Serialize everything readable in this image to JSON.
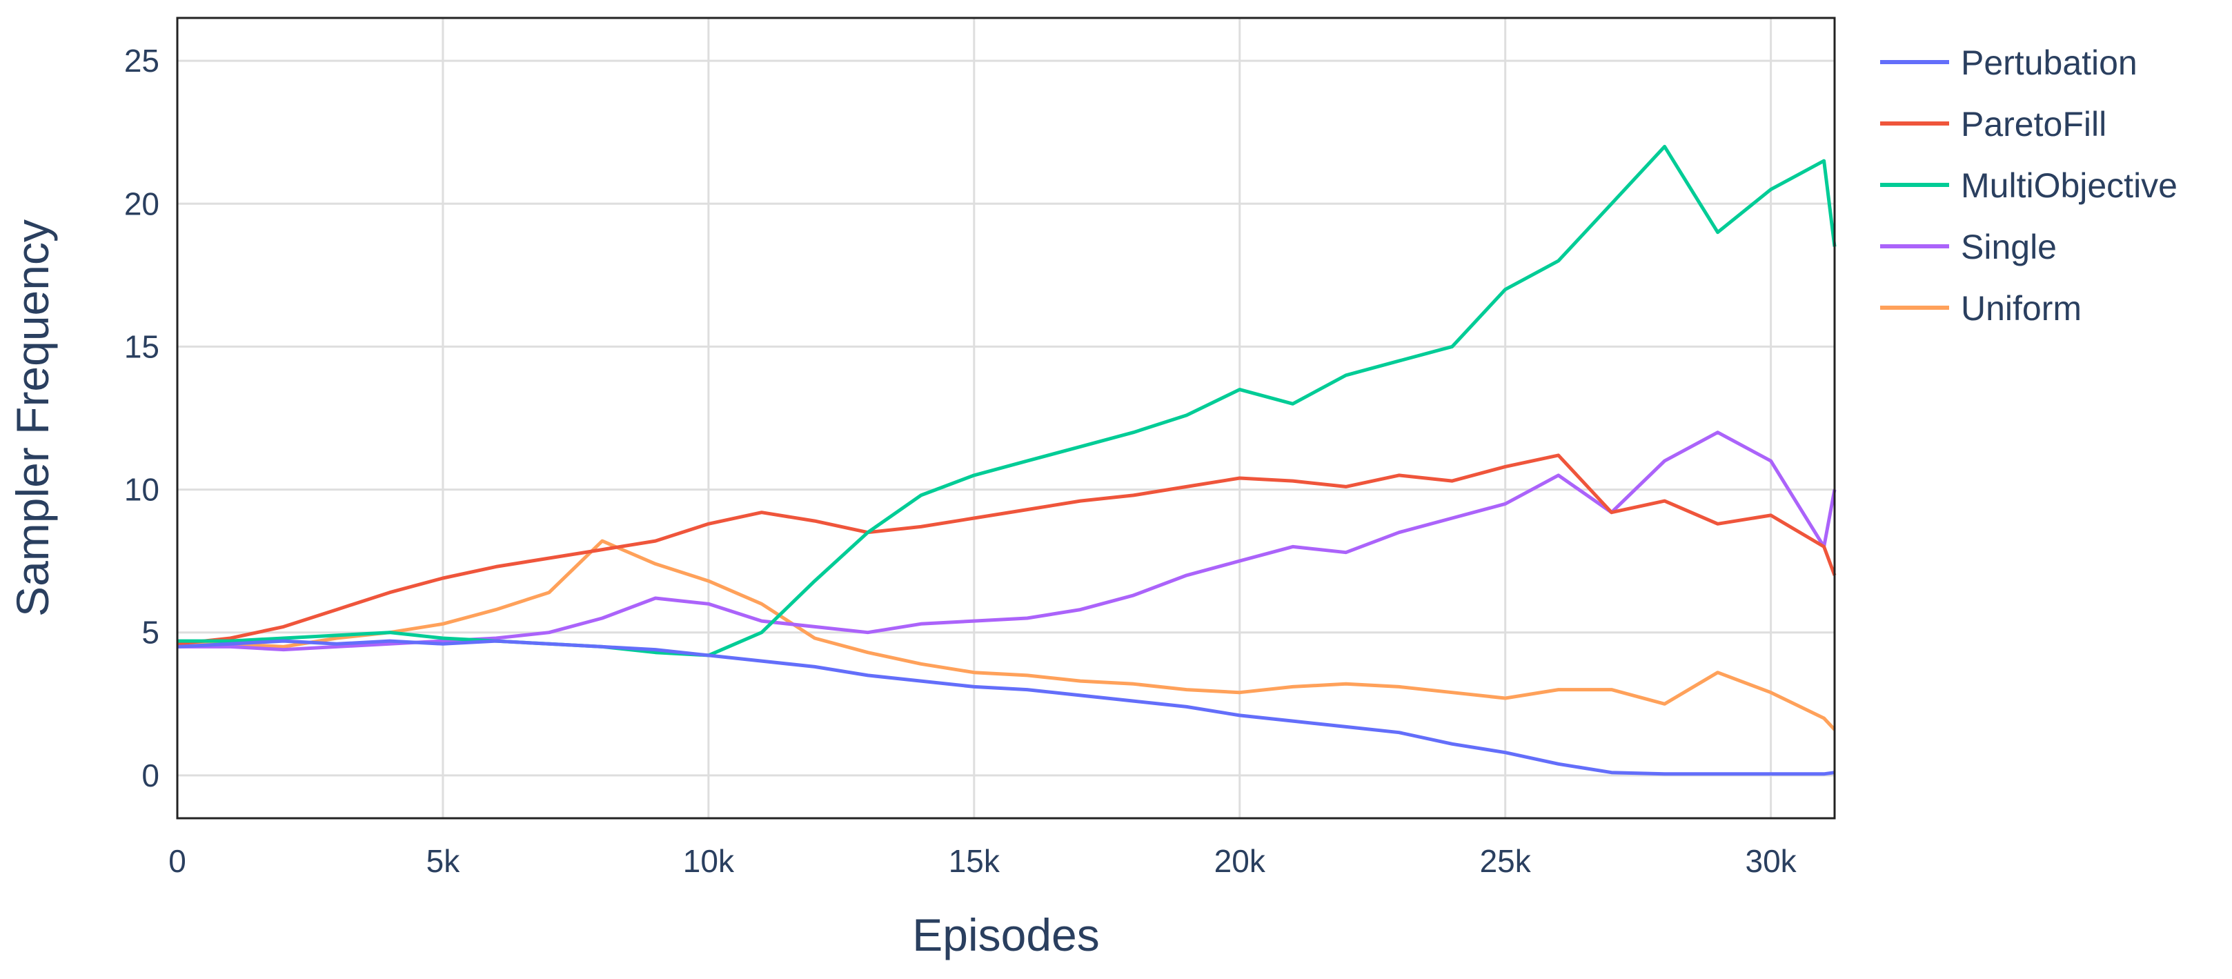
{
  "chart_data": {
    "type": "line",
    "title": "",
    "xlabel": "Episodes",
    "ylabel": "Sampler Frequency",
    "xlim": [
      0,
      31200
    ],
    "ylim": [
      -1.5,
      26.5
    ],
    "grid": true,
    "legend_position": "right",
    "x_ticks": [
      {
        "value": 0,
        "label": "0"
      },
      {
        "value": 5000,
        "label": "5k"
      },
      {
        "value": 10000,
        "label": "10k"
      },
      {
        "value": 15000,
        "label": "15k"
      },
      {
        "value": 20000,
        "label": "20k"
      },
      {
        "value": 25000,
        "label": "25k"
      },
      {
        "value": 30000,
        "label": "30k"
      }
    ],
    "y_ticks": [
      {
        "value": 0,
        "label": "0"
      },
      {
        "value": 5,
        "label": "5"
      },
      {
        "value": 10,
        "label": "10"
      },
      {
        "value": 15,
        "label": "15"
      },
      {
        "value": 20,
        "label": "20"
      },
      {
        "value": 25,
        "label": "25"
      }
    ],
    "x": [
      0,
      1000,
      2000,
      3000,
      4000,
      5000,
      6000,
      7000,
      8000,
      9000,
      10000,
      11000,
      12000,
      13000,
      14000,
      15000,
      16000,
      17000,
      18000,
      19000,
      20000,
      21000,
      22000,
      23000,
      24000,
      25000,
      26000,
      27000,
      28000,
      29000,
      30000,
      31000,
      31200
    ],
    "series": [
      {
        "name": "Pertubation",
        "color": "#636efa",
        "values": [
          4.5,
          4.6,
          4.7,
          4.6,
          4.7,
          4.6,
          4.7,
          4.6,
          4.5,
          4.4,
          4.2,
          4.0,
          3.8,
          3.5,
          3.3,
          3.1,
          3.0,
          2.8,
          2.6,
          2.4,
          2.1,
          1.9,
          1.7,
          1.5,
          1.1,
          0.8,
          0.4,
          0.1,
          0.05,
          0.05,
          0.05,
          0.05,
          0.1
        ]
      },
      {
        "name": "ParetoFill",
        "color": "#ef553b",
        "values": [
          4.6,
          4.8,
          5.2,
          5.8,
          6.4,
          6.9,
          7.3,
          7.6,
          7.9,
          8.2,
          8.8,
          9.2,
          8.9,
          8.5,
          8.7,
          9.0,
          9.3,
          9.6,
          9.8,
          10.1,
          10.4,
          10.3,
          10.1,
          10.5,
          10.3,
          10.8,
          11.2,
          9.2,
          9.6,
          8.8,
          9.1,
          8.0,
          7.0
        ]
      },
      {
        "name": "MultiObjective",
        "color": "#00cc96",
        "values": [
          4.7,
          4.7,
          4.8,
          4.9,
          5.0,
          4.8,
          4.7,
          4.6,
          4.5,
          4.3,
          4.2,
          5.0,
          6.8,
          8.5,
          9.8,
          10.5,
          11.0,
          11.5,
          12.0,
          12.6,
          13.5,
          13.0,
          14.0,
          14.5,
          15.0,
          17.0,
          18.0,
          20.0,
          22.0,
          19.0,
          20.5,
          21.5,
          18.5
        ]
      },
      {
        "name": "Single",
        "color": "#ab63fa",
        "values": [
          4.5,
          4.5,
          4.4,
          4.5,
          4.6,
          4.7,
          4.8,
          5.0,
          5.5,
          6.2,
          6.0,
          5.4,
          5.2,
          5.0,
          5.3,
          5.4,
          5.5,
          5.8,
          6.3,
          7.0,
          7.5,
          8.0,
          7.8,
          8.5,
          9.0,
          9.5,
          10.5,
          9.2,
          11.0,
          12.0,
          11.0,
          8.0,
          10.0
        ]
      },
      {
        "name": "Uniform",
        "color": "#ffa15a",
        "values": [
          4.6,
          4.6,
          4.5,
          4.8,
          5.0,
          5.3,
          5.8,
          6.4,
          8.2,
          7.4,
          6.8,
          6.0,
          4.8,
          4.3,
          3.9,
          3.6,
          3.5,
          3.3,
          3.2,
          3.0,
          2.9,
          3.1,
          3.2,
          3.1,
          2.9,
          2.7,
          3.0,
          3.0,
          2.5,
          3.6,
          2.9,
          2.0,
          1.6
        ]
      }
    ]
  }
}
